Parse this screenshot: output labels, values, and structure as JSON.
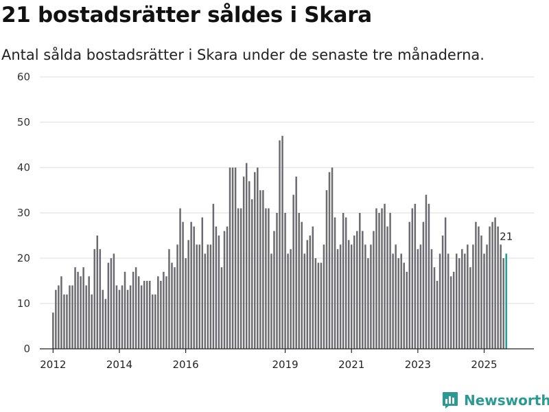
{
  "title": "21 bostadsrätter såldes i Skara",
  "subtitle": "Antal sålda bostadsrätter i Skara under de senaste tre månaderna.",
  "brand": {
    "name": "Newsworthy",
    "color": "#2a9a93"
  },
  "colors": {
    "bar": "#6b6a70",
    "highlight": "#1a9e96",
    "grid": "#dcdcdc"
  },
  "chart_data": {
    "type": "bar",
    "title": "21 bostadsrätter såldes i Skara",
    "xlabel": "",
    "ylabel": "",
    "ylim": [
      0,
      60
    ],
    "yticks": [
      0,
      10,
      20,
      30,
      40,
      50,
      60
    ],
    "x_start": 2012.0,
    "x_step": 0.08333,
    "xlim": [
      2011.6,
      2026.5
    ],
    "xtick_years": [
      2012,
      2014,
      2016,
      2019,
      2021,
      2023,
      2025
    ],
    "values": [
      8,
      13,
      14,
      16,
      12,
      12,
      14,
      14,
      18,
      17,
      16,
      18,
      14,
      16,
      12,
      22,
      25,
      22,
      13,
      11,
      19,
      20,
      21,
      14,
      13,
      14,
      17,
      13,
      14,
      17,
      18,
      16,
      14,
      15,
      15,
      15,
      12,
      12,
      16,
      15,
      17,
      16,
      22,
      19,
      18,
      23,
      31,
      28,
      20,
      24,
      28,
      27,
      23,
      23,
      29,
      21,
      23,
      23,
      32,
      27,
      25,
      18,
      26,
      27,
      40,
      40,
      40,
      31,
      31,
      38,
      41,
      37,
      33,
      39,
      40,
      35,
      35,
      31,
      31,
      21,
      26,
      30,
      46,
      47,
      30,
      21,
      22,
      34,
      38,
      30,
      28,
      21,
      24,
      25,
      27,
      20,
      19,
      19,
      23,
      35,
      39,
      40,
      29,
      22,
      23,
      30,
      29,
      24,
      23,
      25,
      26,
      30,
      26,
      23,
      20,
      23,
      26,
      31,
      30,
      31,
      32,
      27,
      30,
      21,
      23,
      20,
      21,
      19,
      17,
      28,
      31,
      32,
      22,
      23,
      28,
      34,
      32,
      22,
      18,
      15,
      21,
      25,
      29,
      21,
      16,
      17,
      21,
      20,
      22,
      21,
      23,
      18,
      23,
      28,
      27,
      25,
      21,
      23,
      27,
      28,
      29,
      27,
      23,
      20,
      21
    ],
    "highlight_last": 1,
    "annotation": {
      "label": "21",
      "value": 21
    }
  }
}
